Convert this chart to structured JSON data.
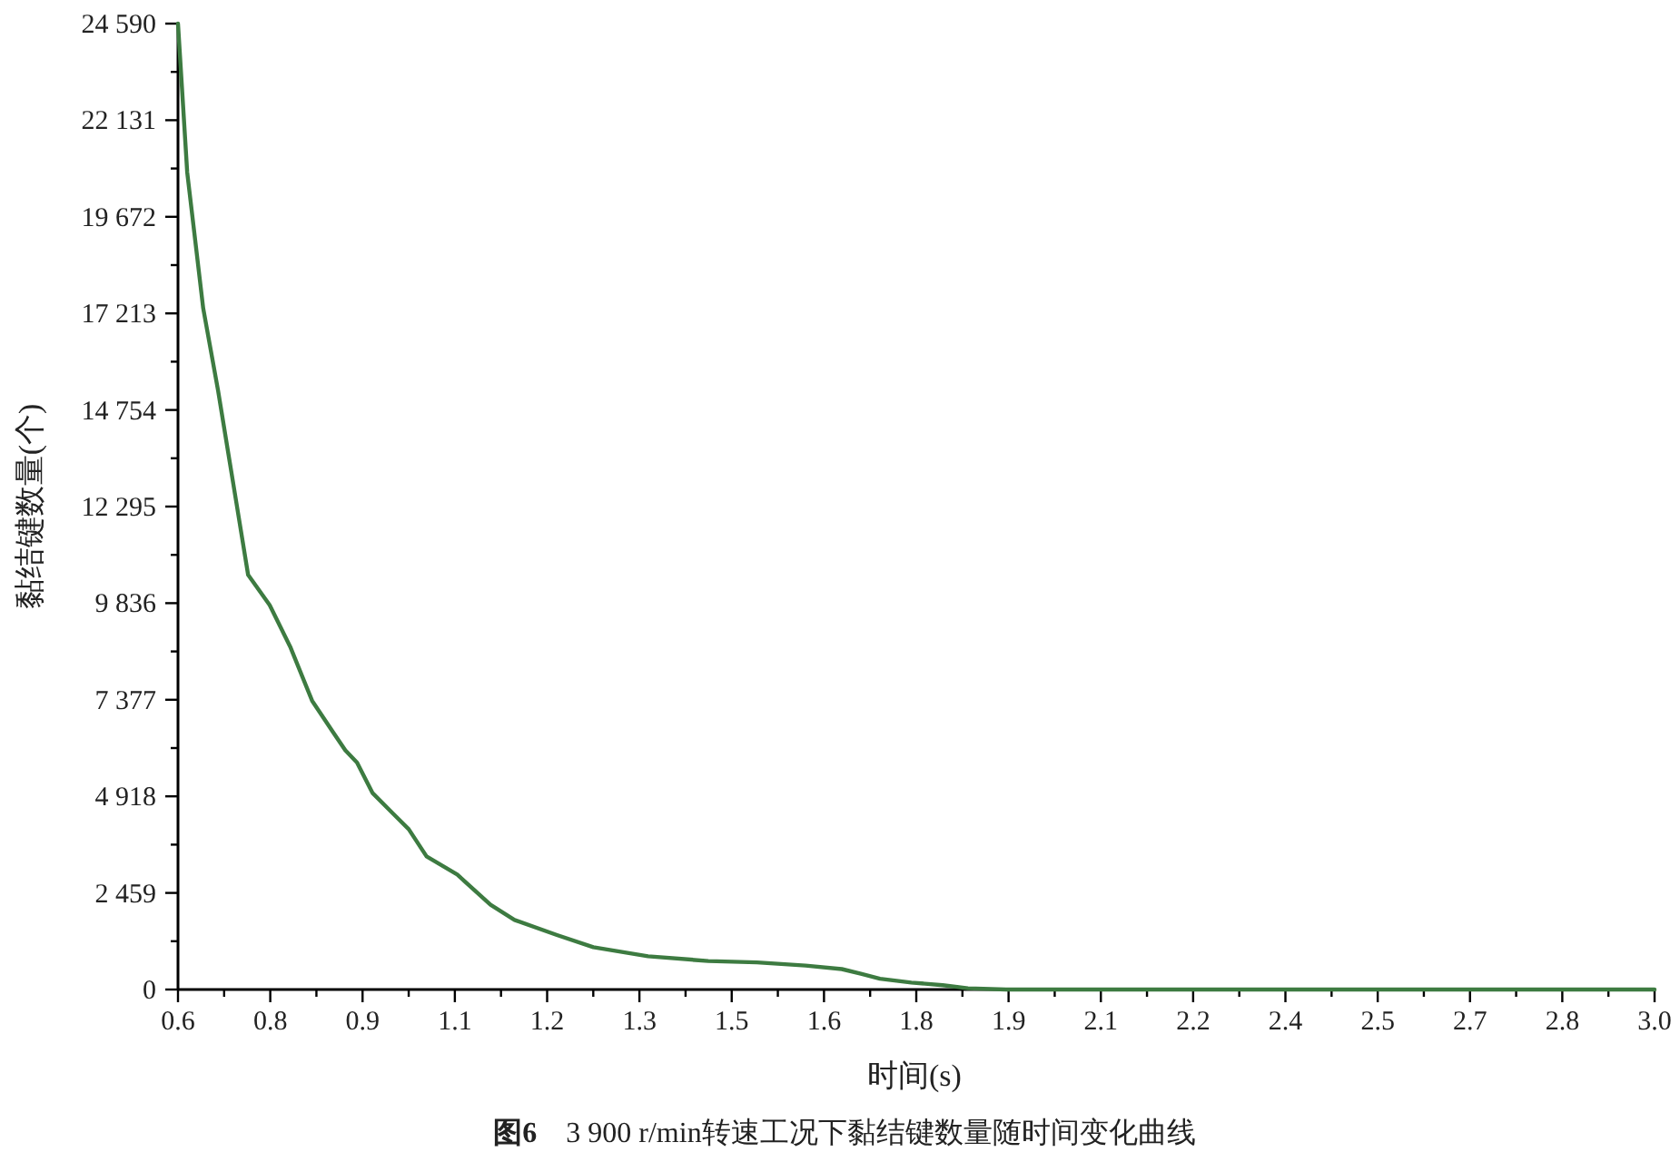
{
  "chart_data": {
    "type": "line",
    "xlabel": "时间(s)",
    "ylabel": "黏结键数量(个)",
    "annotations": [
      "**图6**　3 900 r/min转速工况下黏结键数量随时间变化曲线"
    ],
    "color": "#3d7b41",
    "x": [
      0.6,
      0.615,
      0.641,
      0.665,
      0.694,
      0.714,
      0.749,
      0.783,
      0.818,
      0.852,
      0.872,
      0.891,
      0.916,
      0.95,
      0.975,
      1.004,
      1.054,
      1.108,
      1.147,
      1.216,
      1.275,
      1.364,
      1.462,
      1.541,
      1.62,
      1.679,
      1.71,
      1.741,
      1.792,
      1.843,
      1.884,
      1.946,
      2.1,
      2.5,
      3.0
    ],
    "values": [
      24590,
      20800,
      17340,
      15260,
      12480,
      10555,
      9787,
      8706,
      7351,
      6551,
      6089,
      5779,
      5007,
      4471,
      4082,
      3389,
      2926,
      2159,
      1771,
      1387,
      1077,
      846,
      726,
      690,
      610,
      520,
      402,
      273,
      176,
      111,
      32,
      0,
      0,
      0,
      0
    ],
    "xlim": [
      0.6,
      3.0
    ],
    "xticks": [
      0.6,
      {
        "value": 0.75,
        "label": "0.8"
      },
      0.9,
      {
        "value": 1.05,
        "label": "1.1"
      },
      1.2,
      {
        "value": 1.35,
        "label": "1.3"
      },
      1.5,
      {
        "value": 1.65,
        "label": "1.6"
      },
      1.8,
      {
        "value": 1.95,
        "label": "1.9"
      },
      2.1,
      {
        "value": 2.25,
        "label": "2.2"
      },
      2.4,
      {
        "value": 2.55,
        "label": "2.5"
      },
      2.7,
      {
        "value": 2.85,
        "label": "2.8"
      },
      {
        "value": 3,
        "label": "3.0"
      }
    ],
    "ylim": [
      0,
      24590
    ],
    "yticks": [
      0,
      {
        "value": 2459,
        "label": "2 459"
      },
      {
        "value": 4918,
        "label": "4 918"
      },
      {
        "value": 7377,
        "label": "7 377"
      },
      {
        "value": 9836,
        "label": "9 836"
      },
      {
        "value": 12295,
        "label": "12 295"
      },
      {
        "value": 14754,
        "label": "14 754"
      },
      {
        "value": 17213,
        "label": "17 213"
      },
      {
        "value": 19672,
        "label": "19 672"
      },
      {
        "value": 22131,
        "label": "22 131"
      },
      {
        "value": 24590,
        "label": "24 590"
      }
    ]
  }
}
